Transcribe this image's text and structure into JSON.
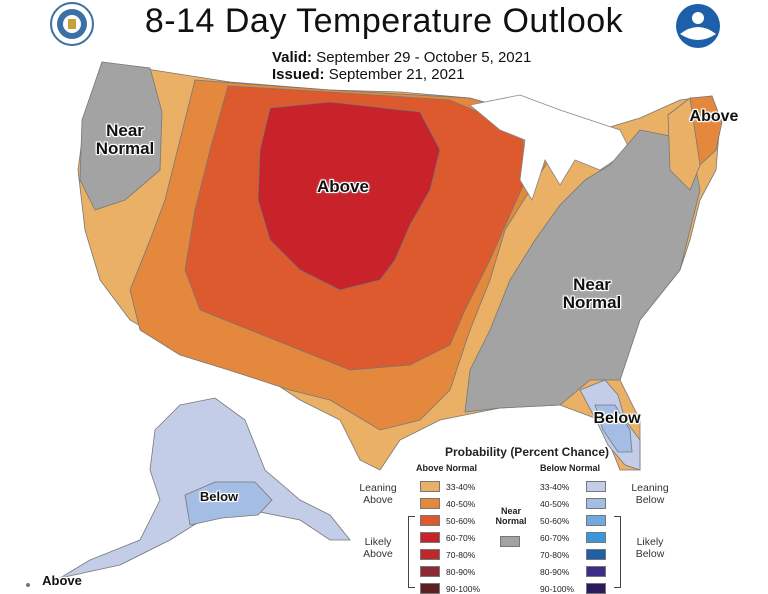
{
  "header": {
    "title": "8-14 Day Temperature Outlook",
    "valid_label": "Valid:",
    "valid_value": "September 29 - October 5, 2021",
    "issued_label": "Issued:",
    "issued_value": "September 21, 2021"
  },
  "logos": {
    "left": "doc-seal-icon",
    "right": "noaa-logo-icon"
  },
  "map_labels": {
    "nw": "Near Normal",
    "central": "Above",
    "ne": "Above",
    "se": "Near Normal",
    "florida": "Below",
    "alaska_interior": "Below",
    "alaska_south": "Above"
  },
  "legend": {
    "title": "Probability (Percent Chance)",
    "above_head": "Above Normal",
    "below_head": "Below Normal",
    "leaning_above": "Leaning Above",
    "likely_above": "Likely Above",
    "leaning_below": "Leaning Below",
    "likely_below": "Likely Below",
    "near_normal": "Near Normal",
    "above": [
      {
        "label": "33-40%",
        "color": "#e9b066"
      },
      {
        "label": "40-50%",
        "color": "#e4883e"
      },
      {
        "label": "50-60%",
        "color": "#dd5a2e"
      },
      {
        "label": "60-70%",
        "color": "#c8222a"
      },
      {
        "label": "70-80%",
        "color": "#bb2a2a"
      },
      {
        "label": "80-90%",
        "color": "#8c2a35"
      },
      {
        "label": "90-100%",
        "color": "#5c1f22"
      }
    ],
    "below": [
      {
        "label": "33-40%",
        "color": "#c3cde8"
      },
      {
        "label": "40-50%",
        "color": "#a4bde5"
      },
      {
        "label": "50-60%",
        "color": "#6fa9df"
      },
      {
        "label": "60-70%",
        "color": "#3b97dc"
      },
      {
        "label": "70-80%",
        "color": "#1e5fa8"
      },
      {
        "label": "80-90%",
        "color": "#3a2e87"
      },
      {
        "label": "90-100%",
        "color": "#2b1a5e"
      }
    ],
    "near_normal_color": "#a3a3a3"
  }
}
